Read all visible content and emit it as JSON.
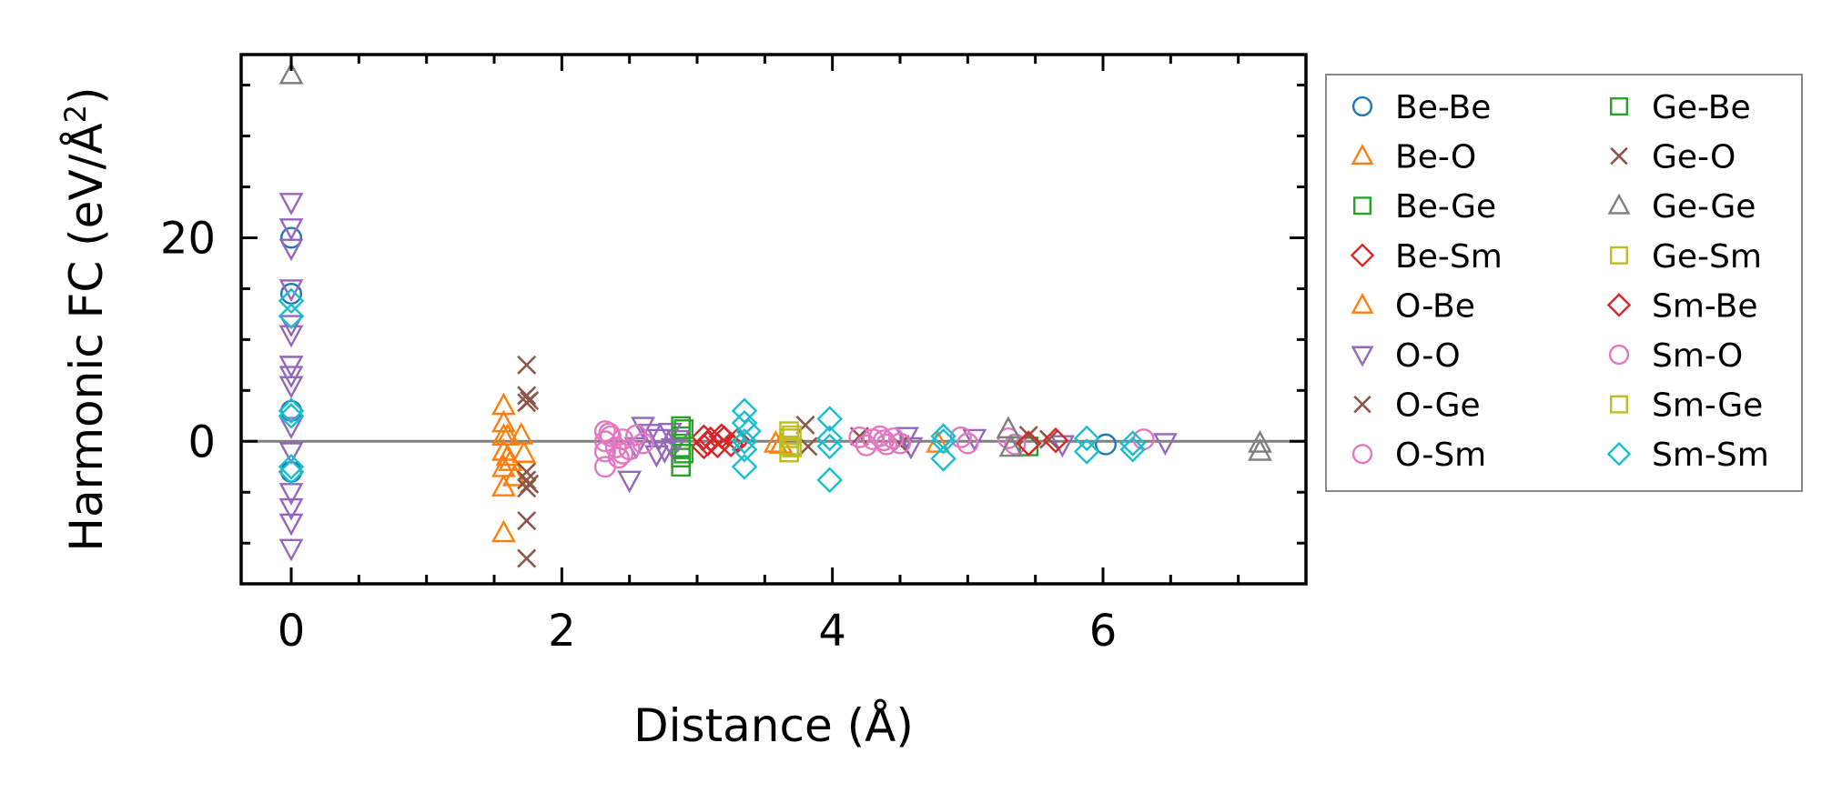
{
  "chart_data": {
    "type": "scatter",
    "title": "",
    "xlabel": "Distance (Å)",
    "ylabel": "Harmonic FC (eV/Å²)",
    "ylabel_base": "Harmonic FC (eV/Å",
    "ylabel_sup": "2",
    "ylabel_tail": ")",
    "xlim": [
      -0.37,
      7.5
    ],
    "ylim": [
      -14,
      38
    ],
    "xticks": [
      0,
      2,
      4,
      6
    ],
    "yticks": [
      0,
      20
    ],
    "xtick_labels": [
      "0",
      "2",
      "4",
      "6"
    ],
    "ytick_labels": [
      "0",
      "20"
    ],
    "grid": false,
    "zero_line": 0,
    "legend": {
      "placement": "outside-right",
      "columns": 2
    },
    "series": [
      {
        "name": "Be-Be",
        "marker": "circle",
        "color": "#1f77b4",
        "points": [
          [
            0,
            3
          ],
          [
            0,
            -3
          ],
          [
            0,
            14.5
          ],
          [
            0,
            20
          ],
          [
            6.02,
            -0.3
          ]
        ]
      },
      {
        "name": "Be-O",
        "marker": "triangle-up",
        "color": "#ff7f0e",
        "points": [
          [
            1.57,
            3.5
          ],
          [
            1.57,
            1.8
          ],
          [
            1.57,
            -1
          ],
          [
            1.57,
            -2.6
          ],
          [
            1.57,
            -4.5
          ],
          [
            1.57,
            -9
          ],
          [
            1.6,
            0.5
          ],
          [
            1.62,
            -2
          ],
          [
            1.65,
            -3.5
          ],
          [
            1.7,
            0.6
          ],
          [
            1.72,
            -1.2
          ],
          [
            3.62,
            -0.3
          ],
          [
            4.78,
            -0.2
          ]
        ]
      },
      {
        "name": "Be-Ge",
        "marker": "square",
        "color": "#2ca02c",
        "points": [
          [
            2.88,
            1.5
          ],
          [
            2.88,
            0.5
          ],
          [
            2.88,
            -0.6
          ],
          [
            2.88,
            -1.6
          ],
          [
            2.88,
            -2.5
          ],
          [
            5.45,
            -0.5
          ]
        ]
      },
      {
        "name": "Be-Sm",
        "marker": "diamond",
        "color": "#d62728",
        "points": [
          [
            3.05,
            0.4
          ],
          [
            3.05,
            -0.5
          ],
          [
            3.1,
            0.2
          ],
          [
            3.15,
            -0.4
          ],
          [
            3.2,
            0.3
          ],
          [
            3.25,
            -0.3
          ],
          [
            3.3,
            0.1
          ]
        ]
      },
      {
        "name": "O-Be",
        "marker": "triangle-up",
        "color": "#ff7f0e",
        "points": [
          [
            1.57,
            0.5
          ],
          [
            1.6,
            -1.5
          ],
          [
            3.58,
            -0.2
          ]
        ]
      },
      {
        "name": "O-O",
        "marker": "triangle-down",
        "color": "#9467bd",
        "points": [
          [
            0,
            23.5
          ],
          [
            0,
            21
          ],
          [
            0,
            19
          ],
          [
            0,
            15
          ],
          [
            0,
            11.5
          ],
          [
            0,
            10.5
          ],
          [
            0,
            7.5
          ],
          [
            0,
            6.5
          ],
          [
            0,
            5.5
          ],
          [
            0,
            1.5
          ],
          [
            0,
            -1
          ],
          [
            0,
            -5
          ],
          [
            0,
            -6.5
          ],
          [
            0,
            -8
          ],
          [
            0,
            -10.5
          ],
          [
            2.5,
            -3.8
          ],
          [
            2.55,
            -0.5
          ],
          [
            2.6,
            1.5
          ],
          [
            2.65,
            0.8
          ],
          [
            2.7,
            -1.3
          ],
          [
            2.72,
            0.3
          ],
          [
            2.76,
            -0.9
          ],
          [
            2.8,
            0.9
          ],
          [
            2.82,
            -0.6
          ],
          [
            2.86,
            0.2
          ],
          [
            4.55,
            0.5
          ],
          [
            4.58,
            -0.5
          ],
          [
            5.05,
            0.3
          ],
          [
            5.7,
            -0.3
          ],
          [
            6.46,
            -0.1
          ]
        ]
      },
      {
        "name": "O-Ge",
        "marker": "x",
        "color": "#8c564b",
        "points": [
          [
            1.74,
            7.5
          ],
          [
            1.74,
            4.5
          ],
          [
            1.74,
            3.8
          ],
          [
            1.74,
            -3
          ],
          [
            1.74,
            -3.8
          ],
          [
            1.74,
            -4.6
          ],
          [
            1.74,
            -7.8
          ],
          [
            1.74,
            -11.5
          ],
          [
            3.8,
            1.6
          ],
          [
            3.82,
            -0.5
          ],
          [
            4.2,
            0.5
          ],
          [
            4.5,
            -0.3
          ],
          [
            5.45,
            0.6
          ],
          [
            5.6,
            0.2
          ]
        ]
      },
      {
        "name": "O-Sm",
        "marker": "circle",
        "color": "#e377c2",
        "points": [
          [
            2.32,
            1
          ],
          [
            2.32,
            0
          ],
          [
            2.32,
            -1
          ],
          [
            2.32,
            -2.5
          ],
          [
            2.36,
            0.5
          ],
          [
            2.4,
            -0.6
          ],
          [
            2.42,
            -1.6
          ],
          [
            2.45,
            0.2
          ],
          [
            2.5,
            -0.8
          ],
          [
            2.55,
            0.6
          ],
          [
            2.6,
            -0.2
          ],
          [
            4.2,
            0.4
          ],
          [
            4.25,
            -0.4
          ],
          [
            4.3,
            0.2
          ],
          [
            4.35,
            0.5
          ],
          [
            4.4,
            -0.3
          ],
          [
            4.45,
            0.3
          ],
          [
            4.5,
            -0.2
          ],
          [
            4.95,
            0.4
          ],
          [
            5.0,
            -0.2
          ],
          [
            5.3,
            0.3
          ],
          [
            5.35,
            -0.3
          ],
          [
            6.3,
            0.2
          ]
        ]
      },
      {
        "name": "Ge-Be",
        "marker": "square",
        "color": "#2ca02c",
        "points": [
          [
            2.9,
            1.2
          ],
          [
            2.9,
            -1.2
          ]
        ]
      },
      {
        "name": "Ge-O",
        "marker": "x",
        "color": "#8c564b",
        "points": [
          [
            1.76,
            4
          ],
          [
            1.76,
            -4.2
          ]
        ]
      },
      {
        "name": "Ge-Ge",
        "marker": "triangle-up",
        "color": "#7f7f7f",
        "points": [
          [
            0,
            36
          ],
          [
            5.3,
            1.2
          ],
          [
            5.32,
            -0.6
          ],
          [
            7.16,
            -0.2
          ],
          [
            7.16,
            -1
          ]
        ]
      },
      {
        "name": "Ge-Sm",
        "marker": "square",
        "color": "#bcbd22",
        "points": [
          [
            3.68,
            1
          ],
          [
            3.68,
            0.3
          ],
          [
            3.68,
            -0.4
          ],
          [
            3.68,
            -1.1
          ],
          [
            3.7,
            0.6
          ]
        ]
      },
      {
        "name": "Sm-Be",
        "marker": "diamond",
        "color": "#d62728",
        "points": [
          [
            3.08,
            -0.2
          ],
          [
            3.18,
            0.5
          ],
          [
            5.45,
            -0.2
          ],
          [
            5.65,
            0.1
          ]
        ]
      },
      {
        "name": "Sm-O",
        "marker": "circle",
        "color": "#e377c2",
        "points": [
          [
            2.35,
            0.8
          ],
          [
            2.45,
            -1.2
          ],
          [
            4.38,
            0.1
          ]
        ]
      },
      {
        "name": "Sm-Ge",
        "marker": "square",
        "color": "#bcbd22",
        "points": [
          [
            3.7,
            -0.6
          ]
        ]
      },
      {
        "name": "Sm-Sm",
        "marker": "diamond",
        "color": "#17becf",
        "points": [
          [
            0,
            13.8
          ],
          [
            0,
            12.3
          ],
          [
            0,
            3
          ],
          [
            0,
            2.5
          ],
          [
            0,
            -2.5
          ],
          [
            0,
            -3
          ],
          [
            3.35,
            3
          ],
          [
            3.35,
            1.8
          ],
          [
            3.35,
            0
          ],
          [
            3.35,
            -0.8
          ],
          [
            3.35,
            -2.5
          ],
          [
            3.38,
            1
          ],
          [
            3.98,
            2.2
          ],
          [
            3.98,
            0.3
          ],
          [
            3.98,
            -0.5
          ],
          [
            3.98,
            -3.8
          ],
          [
            4.82,
            0.5
          ],
          [
            4.82,
            0
          ],
          [
            4.82,
            -1.7
          ],
          [
            5.88,
            0.3
          ],
          [
            5.88,
            -1
          ],
          [
            6.22,
            -0.2
          ],
          [
            6.22,
            -0.8
          ]
        ]
      }
    ]
  }
}
